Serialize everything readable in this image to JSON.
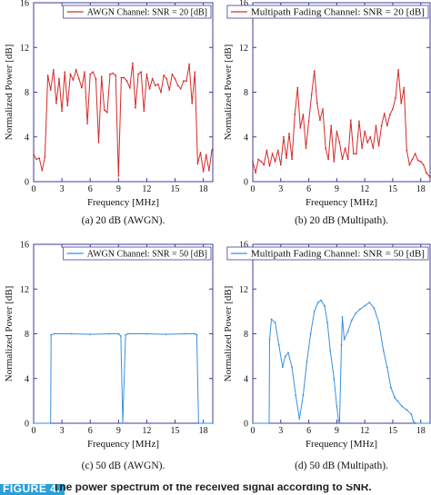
{
  "chart_data": [
    {
      "type": "line",
      "panel_caption": "(a) 20 dB (AWGN).",
      "legend": "AWGN Channel: SNR = 20 [dB]",
      "legend_placement": "top-right",
      "xlabel": "Frequency [MHz]",
      "ylabel": "Normalized Power [dB]",
      "xlim": [
        0,
        19
      ],
      "ylim": [
        0,
        16
      ],
      "xticks": [
        0,
        3,
        6,
        9,
        12,
        15,
        18
      ],
      "yticks": [
        0,
        4,
        8,
        12,
        16
      ],
      "color": "#d42b2b",
      "x": [
        0.0,
        0.3,
        0.6,
        0.9,
        1.2,
        1.5,
        1.8,
        2.1,
        2.4,
        2.7,
        3.0,
        3.3,
        3.6,
        3.9,
        4.2,
        4.5,
        4.8,
        5.1,
        5.4,
        5.7,
        6.0,
        6.3,
        6.6,
        6.9,
        7.2,
        7.5,
        7.8,
        8.1,
        8.4,
        8.7,
        9.0,
        9.3,
        9.6,
        9.9,
        10.2,
        10.5,
        10.8,
        11.1,
        11.4,
        11.7,
        12.0,
        12.3,
        12.6,
        12.9,
        13.2,
        13.5,
        13.8,
        14.1,
        14.4,
        14.7,
        15.0,
        15.3,
        15.6,
        15.9,
        16.2,
        16.5,
        16.8,
        17.1,
        17.4,
        17.7,
        18.0,
        18.3,
        18.6,
        18.9,
        19.0
      ],
      "y": [
        2.4,
        2.0,
        2.1,
        1.0,
        2.2,
        9.5,
        8.2,
        10.0,
        7.0,
        9.2,
        6.3,
        9.8,
        6.8,
        9.6,
        9.1,
        10.0,
        9.2,
        8.4,
        9.8,
        5.2,
        9.6,
        9.8,
        9.2,
        3.5,
        9.4,
        6.4,
        6.2,
        9.6,
        9.7,
        9.5,
        0.5,
        9.3,
        9.3,
        9.0,
        8.4,
        10.6,
        6.6,
        9.6,
        9.8,
        6.3,
        9.6,
        8.3,
        9.2,
        8.6,
        8.7,
        8.0,
        9.5,
        9.2,
        8.2,
        9.6,
        9.2,
        8.6,
        8.3,
        9.0,
        9.0,
        10.5,
        7.0,
        9.8,
        1.6,
        2.6,
        0.9,
        2.4,
        1.0,
        2.8,
        2.9
      ]
    },
    {
      "type": "line",
      "panel_caption": "(b) 20 dB (Multipath).",
      "legend": "Multipath Fading Channel: SNR = 20 [dB]",
      "legend_placement": "top-right",
      "xlabel": "Frequency [MHz]",
      "ylabel": "Normalized Power [dB]",
      "xlim": [
        0,
        19
      ],
      "ylim": [
        0,
        16
      ],
      "xticks": [
        0,
        3,
        6,
        9,
        12,
        15,
        18
      ],
      "yticks": [
        0,
        4,
        8,
        12,
        16
      ],
      "color": "#d42b2b",
      "x": [
        0.0,
        0.3,
        0.6,
        0.9,
        1.2,
        1.5,
        1.8,
        2.1,
        2.4,
        2.7,
        3.0,
        3.3,
        3.6,
        3.9,
        4.2,
        4.5,
        4.8,
        5.1,
        5.4,
        5.7,
        6.0,
        6.3,
        6.6,
        6.9,
        7.2,
        7.5,
        7.8,
        8.1,
        8.4,
        8.7,
        9.0,
        9.3,
        9.6,
        9.9,
        10.2,
        10.5,
        10.8,
        11.1,
        11.4,
        11.7,
        12.0,
        12.3,
        12.6,
        12.9,
        13.2,
        13.5,
        13.8,
        14.1,
        14.4,
        14.7,
        15.0,
        15.3,
        15.6,
        15.9,
        16.2,
        16.5,
        16.8,
        17.1,
        17.4,
        17.7,
        18.0,
        18.3,
        18.6,
        18.9,
        19.0
      ],
      "y": [
        1.8,
        0.8,
        2.0,
        1.8,
        1.5,
        2.8,
        1.4,
        2.5,
        1.8,
        2.8,
        1.5,
        4.0,
        2.1,
        4.3,
        2.0,
        6.0,
        8.4,
        4.8,
        6.0,
        3.0,
        5.4,
        7.8,
        9.9,
        7.0,
        5.5,
        6.5,
        3.0,
        2.0,
        5.0,
        1.8,
        4.5,
        3.5,
        2.0,
        3.0,
        2.0,
        5.5,
        2.5,
        2.5,
        5.4,
        3.0,
        4.5,
        3.5,
        4.0,
        3.0,
        5.0,
        3.2,
        5.0,
        6.1,
        5.0,
        6.0,
        6.5,
        7.5,
        10.0,
        7.0,
        8.4,
        2.8,
        1.5,
        2.0,
        2.5,
        1.9,
        1.8,
        1.5,
        0.8,
        0.5,
        0.4
      ]
    },
    {
      "type": "line",
      "panel_caption": "(c) 50 dB (AWGN).",
      "legend": "AWGN Channel: SNR = 50 [dB]",
      "legend_placement": "top-right",
      "xlabel": "Frequency [MHz]",
      "ylabel": "Normalized Power [dB]",
      "xlim": [
        0,
        19
      ],
      "ylim": [
        0,
        16
      ],
      "xticks": [
        0,
        3,
        6,
        9,
        12,
        15,
        18
      ],
      "yticks": [
        0,
        4,
        8,
        12,
        16
      ],
      "color": "#3a8fe0",
      "x": [
        0.0,
        1.8,
        1.85,
        2.2,
        4.0,
        6.0,
        8.0,
        9.0,
        9.25,
        9.45,
        9.75,
        10.0,
        12.0,
        14.0,
        16.0,
        17.1,
        17.3,
        17.5,
        19.0
      ],
      "y": [
        0.0,
        0.0,
        7.9,
        8.0,
        8.0,
        7.95,
        8.0,
        8.0,
        7.8,
        0.0,
        7.9,
        8.0,
        8.0,
        7.95,
        8.0,
        8.0,
        7.9,
        0.0,
        0.0
      ]
    },
    {
      "type": "line",
      "panel_caption": "(d) 50 dB (Multipath).",
      "legend": "Multipath Fading Channel: SNR = 50 [dB]",
      "legend_placement": "top-right",
      "xlabel": "Frequency [MHz]",
      "ylabel": "Normalized Power [dB]",
      "xlim": [
        0,
        19
      ],
      "ylim": [
        0,
        16
      ],
      "xticks": [
        0,
        3,
        6,
        9,
        12,
        15,
        18
      ],
      "yticks": [
        0,
        4,
        8,
        12,
        16
      ],
      "color": "#3a8fe0",
      "x": [
        0.0,
        1.75,
        1.8,
        2.0,
        2.4,
        2.8,
        3.2,
        3.5,
        3.8,
        4.2,
        4.6,
        5.0,
        5.4,
        5.8,
        6.2,
        6.6,
        7.0,
        7.3,
        7.7,
        8.0,
        8.3,
        8.7,
        9.0,
        9.2,
        9.3,
        9.5,
        9.6,
        9.8,
        10.2,
        10.6,
        11.0,
        11.5,
        12.0,
        12.5,
        13.0,
        13.5,
        14.0,
        14.4,
        14.8,
        15.2,
        15.5,
        16.0,
        16.5,
        17.0,
        17.2,
        17.4,
        17.5,
        19.0
      ],
      "y": [
        0.0,
        0.0,
        7.5,
        9.3,
        9.0,
        7.0,
        5.0,
        6.0,
        6.3,
        5.0,
        2.5,
        0.4,
        2.5,
        5.5,
        8.0,
        10.0,
        10.8,
        11.0,
        10.5,
        9.0,
        6.5,
        4.0,
        1.5,
        0.2,
        0.0,
        7.0,
        9.5,
        7.5,
        8.2,
        9.2,
        9.8,
        10.2,
        10.5,
        10.8,
        10.3,
        9.0,
        6.5,
        5.0,
        3.2,
        2.3,
        2.0,
        1.5,
        1.2,
        0.8,
        0.2,
        0.0,
        0.0,
        0.0
      ]
    }
  ],
  "figure_caption": {
    "label": "FIGURE 4.",
    "text": "The power spectrum of the received signal according to SNR."
  }
}
